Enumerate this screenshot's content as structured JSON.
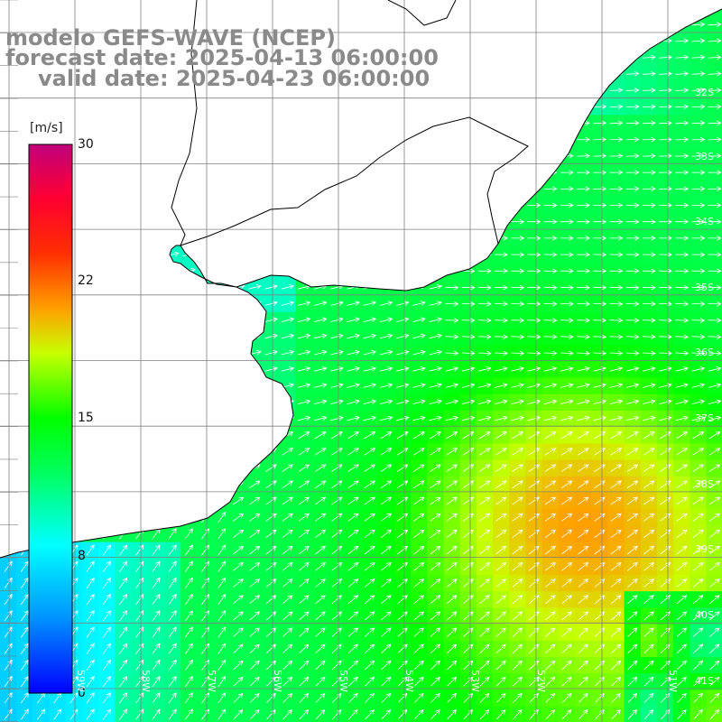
{
  "title": {
    "line1": "modelo GEFS-WAVE (NCEP)",
    "line2": "forecast date: 2025-04-13 06:00:00",
    "line3": "valid date: 2025-04-23 06:00:00"
  },
  "colorbar": {
    "unit": "[m/s]",
    "min": 0,
    "max": 30,
    "tick_labels": [
      "30",
      "22",
      "15",
      "8",
      "0"
    ],
    "tick_values": [
      30,
      22,
      15,
      8,
      0
    ],
    "colors": [
      "#0000ff",
      "#00b4ff",
      "#00ffff",
      "#00ff00",
      "#ffff00",
      "#ff8000",
      "#ff0000",
      "#c0007a"
    ]
  },
  "map": {
    "lat_labels": [
      "32S",
      "33S",
      "34S",
      "35S",
      "36S",
      "37S",
      "38S",
      "39S",
      "40S",
      "41S"
    ],
    "lon_labels": [
      "59W",
      "58W",
      "57W",
      "56W",
      "55W",
      "54W",
      "53W",
      "52W",
      "51W"
    ],
    "grid_color": "#808080",
    "land_color": "#ffffff",
    "coast_color": "#000000"
  }
}
